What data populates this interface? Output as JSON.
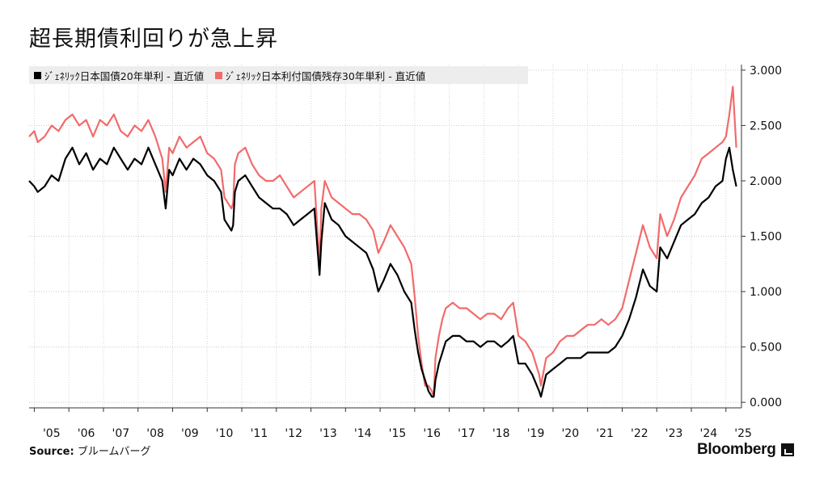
{
  "title": "超長期債利回りが急上昇",
  "legend": [
    {
      "label": "ｼﾞｪﾈﾘｯｸ日本国債20年単利 - 直近値",
      "color": "#000000"
    },
    {
      "label": "ｼﾞｪﾈﾘｯｸ日本利付国債残存30年単利 - 直近値",
      "color": "#f26b6b"
    }
  ],
  "source_label": "Source:",
  "source_text": "ブルームバーグ",
  "brand": "Bloomberg",
  "brand_icon": "bloomberg-terminal-icon",
  "chart_data": {
    "type": "line",
    "title": "超長期債利回りが急上昇",
    "xlabel": "",
    "ylabel": "",
    "x_ticks": [
      "'05",
      "'06",
      "'07",
      "'08",
      "'09",
      "'10",
      "'11",
      "'12",
      "'13",
      "'14",
      "'15",
      "'16",
      "'17",
      "'18",
      "'19",
      "'20",
      "'21",
      "'22",
      "'23",
      "'24",
      "'25"
    ],
    "y_ticks": [
      "0.000",
      "0.500",
      "1.000",
      "1.500",
      "2.000",
      "2.500",
      "3.000"
    ],
    "ylim": [
      -0.05,
      3.05
    ],
    "xlim": [
      2004.85,
      2025.45
    ],
    "grid": true,
    "y_axis_side": "right",
    "legend_position": "top-left",
    "series": [
      {
        "name": "ｼﾞｪﾈﾘｯｸ日本国債20年単利 - 直近値",
        "color": "#000000",
        "x": [
          2004.85,
          2005.0,
          2005.1,
          2005.3,
          2005.5,
          2005.7,
          2005.9,
          2006.1,
          2006.3,
          2006.5,
          2006.7,
          2006.9,
          2007.1,
          2007.3,
          2007.5,
          2007.7,
          2007.9,
          2008.1,
          2008.3,
          2008.5,
          2008.7,
          2008.8,
          2008.9,
          2009.0,
          2009.2,
          2009.4,
          2009.6,
          2009.8,
          2010.0,
          2010.2,
          2010.4,
          2010.5,
          2010.7,
          2010.75,
          2010.8,
          2010.9,
          2011.1,
          2011.3,
          2011.5,
          2011.7,
          2011.9,
          2012.1,
          2012.3,
          2012.5,
          2012.7,
          2012.9,
          2013.1,
          2013.25,
          2013.3,
          2013.4,
          2013.6,
          2013.8,
          2014.0,
          2014.2,
          2014.4,
          2014.6,
          2014.8,
          2014.95,
          2015.1,
          2015.3,
          2015.5,
          2015.7,
          2015.9,
          2016.0,
          2016.1,
          2016.2,
          2016.3,
          2016.4,
          2016.5,
          2016.55,
          2016.6,
          2016.7,
          2016.8,
          2016.9,
          2017.1,
          2017.3,
          2017.5,
          2017.7,
          2017.9,
          2018.1,
          2018.3,
          2018.5,
          2018.7,
          2018.85,
          2019.0,
          2019.2,
          2019.4,
          2019.6,
          2019.65,
          2019.8,
          2020.0,
          2020.2,
          2020.4,
          2020.6,
          2020.8,
          2021.0,
          2021.2,
          2021.4,
          2021.6,
          2021.8,
          2022.0,
          2022.2,
          2022.4,
          2022.6,
          2022.8,
          2023.0,
          2023.1,
          2023.3,
          2023.5,
          2023.7,
          2023.9,
          2024.1,
          2024.3,
          2024.5,
          2024.7,
          2024.9,
          2025.0,
          2025.1,
          2025.2,
          2025.3
        ],
        "values": [
          2.0,
          1.95,
          1.9,
          1.95,
          2.05,
          2.0,
          2.2,
          2.3,
          2.15,
          2.25,
          2.1,
          2.2,
          2.15,
          2.3,
          2.2,
          2.1,
          2.2,
          2.15,
          2.3,
          2.15,
          2.0,
          1.75,
          2.1,
          2.05,
          2.2,
          2.1,
          2.2,
          2.15,
          2.05,
          2.0,
          1.9,
          1.65,
          1.55,
          1.6,
          1.9,
          2.0,
          2.05,
          1.95,
          1.85,
          1.8,
          1.75,
          1.75,
          1.7,
          1.6,
          1.65,
          1.7,
          1.75,
          1.15,
          1.45,
          1.8,
          1.65,
          1.6,
          1.5,
          1.45,
          1.4,
          1.35,
          1.2,
          1.0,
          1.1,
          1.25,
          1.15,
          1.0,
          0.9,
          0.65,
          0.45,
          0.3,
          0.2,
          0.1,
          0.05,
          0.05,
          0.2,
          0.35,
          0.45,
          0.55,
          0.6,
          0.6,
          0.55,
          0.55,
          0.5,
          0.55,
          0.55,
          0.5,
          0.55,
          0.6,
          0.35,
          0.35,
          0.25,
          0.1,
          0.05,
          0.25,
          0.3,
          0.35,
          0.4,
          0.4,
          0.4,
          0.45,
          0.45,
          0.45,
          0.45,
          0.5,
          0.6,
          0.75,
          0.95,
          1.2,
          1.05,
          1.0,
          1.4,
          1.3,
          1.45,
          1.6,
          1.65,
          1.7,
          1.8,
          1.85,
          1.95,
          2.0,
          2.2,
          2.3,
          2.1,
          1.95
        ]
      },
      {
        "name": "ｼﾞｪﾈﾘｯｸ日本利付国債残存30年単利 - 直近値",
        "color": "#f26b6b",
        "x": [
          2004.85,
          2005.0,
          2005.1,
          2005.3,
          2005.5,
          2005.7,
          2005.9,
          2006.1,
          2006.3,
          2006.5,
          2006.7,
          2006.9,
          2007.1,
          2007.3,
          2007.5,
          2007.7,
          2007.9,
          2008.1,
          2008.3,
          2008.5,
          2008.7,
          2008.8,
          2008.9,
          2009.0,
          2009.2,
          2009.4,
          2009.6,
          2009.8,
          2010.0,
          2010.2,
          2010.4,
          2010.5,
          2010.7,
          2010.75,
          2010.8,
          2010.9,
          2011.1,
          2011.3,
          2011.5,
          2011.7,
          2011.9,
          2012.1,
          2012.3,
          2012.5,
          2012.7,
          2012.9,
          2013.1,
          2013.25,
          2013.3,
          2013.4,
          2013.6,
          2013.8,
          2014.0,
          2014.2,
          2014.4,
          2014.6,
          2014.8,
          2014.95,
          2015.1,
          2015.3,
          2015.5,
          2015.7,
          2015.9,
          2016.0,
          2016.1,
          2016.2,
          2016.3,
          2016.4,
          2016.5,
          2016.55,
          2016.6,
          2016.7,
          2016.8,
          2016.9,
          2017.1,
          2017.3,
          2017.5,
          2017.7,
          2017.9,
          2018.1,
          2018.3,
          2018.5,
          2018.7,
          2018.85,
          2019.0,
          2019.2,
          2019.4,
          2019.6,
          2019.65,
          2019.8,
          2020.0,
          2020.2,
          2020.4,
          2020.6,
          2020.8,
          2021.0,
          2021.2,
          2021.4,
          2021.6,
          2021.8,
          2022.0,
          2022.2,
          2022.4,
          2022.6,
          2022.8,
          2023.0,
          2023.1,
          2023.3,
          2023.5,
          2023.7,
          2023.9,
          2024.1,
          2024.3,
          2024.5,
          2024.7,
          2024.9,
          2025.0,
          2025.1,
          2025.2,
          2025.3
        ],
        "values": [
          2.4,
          2.45,
          2.35,
          2.4,
          2.5,
          2.45,
          2.55,
          2.6,
          2.5,
          2.55,
          2.4,
          2.55,
          2.5,
          2.6,
          2.45,
          2.4,
          2.5,
          2.45,
          2.55,
          2.4,
          2.2,
          1.9,
          2.3,
          2.25,
          2.4,
          2.3,
          2.35,
          2.4,
          2.25,
          2.2,
          2.1,
          1.85,
          1.75,
          1.8,
          2.15,
          2.25,
          2.3,
          2.15,
          2.05,
          2.0,
          2.0,
          2.05,
          1.95,
          1.85,
          1.9,
          1.95,
          2.0,
          1.25,
          1.75,
          2.0,
          1.85,
          1.8,
          1.75,
          1.7,
          1.7,
          1.65,
          1.55,
          1.35,
          1.45,
          1.6,
          1.5,
          1.4,
          1.25,
          0.95,
          0.6,
          0.35,
          0.15,
          0.15,
          0.1,
          0.05,
          0.4,
          0.6,
          0.75,
          0.85,
          0.9,
          0.85,
          0.85,
          0.8,
          0.75,
          0.8,
          0.8,
          0.75,
          0.85,
          0.9,
          0.6,
          0.55,
          0.45,
          0.25,
          0.15,
          0.4,
          0.45,
          0.55,
          0.6,
          0.6,
          0.65,
          0.7,
          0.7,
          0.75,
          0.7,
          0.75,
          0.85,
          1.1,
          1.35,
          1.6,
          1.4,
          1.3,
          1.7,
          1.5,
          1.65,
          1.85,
          1.95,
          2.05,
          2.2,
          2.25,
          2.3,
          2.35,
          2.4,
          2.6,
          2.85,
          2.3
        ]
      }
    ]
  }
}
